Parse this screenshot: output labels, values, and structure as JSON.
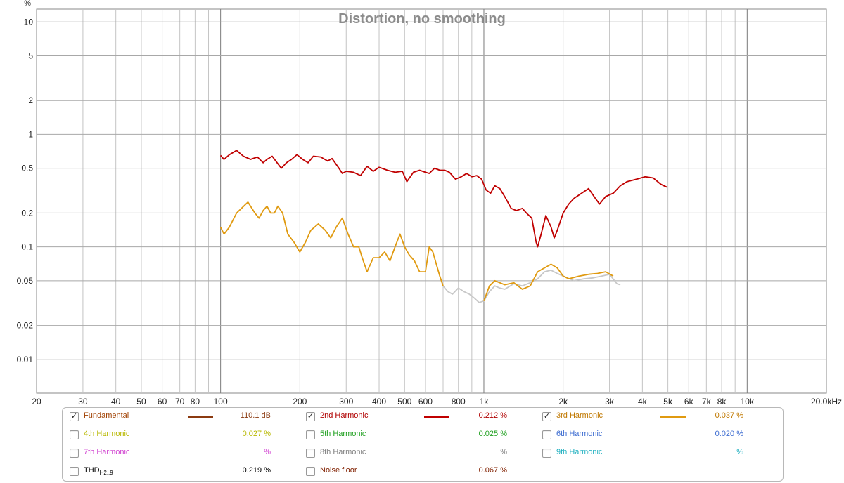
{
  "chart_data": {
    "type": "line",
    "title": "Distortion, no smoothing",
    "y_unit_label": "%",
    "x_scale": "log",
    "y_scale": "log",
    "xlim": [
      20,
      20000
    ],
    "ylim": [
      0.005,
      13
    ],
    "x_ticks": [
      {
        "v": 20,
        "t": "20"
      },
      {
        "v": 30,
        "t": "30"
      },
      {
        "v": 40,
        "t": "40"
      },
      {
        "v": 50,
        "t": "50"
      },
      {
        "v": 60,
        "t": "60"
      },
      {
        "v": 70,
        "t": "70"
      },
      {
        "v": 80,
        "t": "80"
      },
      {
        "v": 90,
        "t": ""
      },
      {
        "v": 100,
        "t": "100"
      },
      {
        "v": 200,
        "t": "200"
      },
      {
        "v": 300,
        "t": "300"
      },
      {
        "v": 400,
        "t": "400"
      },
      {
        "v": 500,
        "t": "500"
      },
      {
        "v": 600,
        "t": "600"
      },
      {
        "v": 700,
        "t": ""
      },
      {
        "v": 800,
        "t": "800"
      },
      {
        "v": 900,
        "t": ""
      },
      {
        "v": 1000,
        "t": "1k"
      },
      {
        "v": 2000,
        "t": "2k"
      },
      {
        "v": 3000,
        "t": "3k"
      },
      {
        "v": 4000,
        "t": "4k"
      },
      {
        "v": 5000,
        "t": "5k"
      },
      {
        "v": 6000,
        "t": "6k"
      },
      {
        "v": 7000,
        "t": "7k"
      },
      {
        "v": 8000,
        "t": "8k"
      },
      {
        "v": 9000,
        "t": ""
      },
      {
        "v": 10000,
        "t": "10k"
      },
      {
        "v": 20000,
        "t": "20.0kHz"
      }
    ],
    "y_ticks": [
      {
        "v": 0.01,
        "t": "0.01"
      },
      {
        "v": 0.02,
        "t": "0.02"
      },
      {
        "v": 0.05,
        "t": "0.05"
      },
      {
        "v": 0.1,
        "t": "0.1"
      },
      {
        "v": 0.2,
        "t": "0.2"
      },
      {
        "v": 0.5,
        "t": "0.5"
      },
      {
        "v": 1,
        "t": "1"
      },
      {
        "v": 2,
        "t": "2"
      },
      {
        "v": 5,
        "t": "5"
      },
      {
        "v": 10,
        "t": "10"
      }
    ],
    "grid": true,
    "series": [
      {
        "name": "2nd Harmonic",
        "color": "#c00000",
        "points": [
          [
            100,
            0.65
          ],
          [
            103,
            0.6
          ],
          [
            108,
            0.66
          ],
          [
            115,
            0.72
          ],
          [
            122,
            0.64
          ],
          [
            130,
            0.6
          ],
          [
            138,
            0.63
          ],
          [
            145,
            0.56
          ],
          [
            150,
            0.6
          ],
          [
            157,
            0.64
          ],
          [
            162,
            0.58
          ],
          [
            170,
            0.5
          ],
          [
            178,
            0.56
          ],
          [
            186,
            0.6
          ],
          [
            195,
            0.66
          ],
          [
            205,
            0.6
          ],
          [
            215,
            0.56
          ],
          [
            225,
            0.64
          ],
          [
            240,
            0.63
          ],
          [
            255,
            0.58
          ],
          [
            265,
            0.61
          ],
          [
            280,
            0.51
          ],
          [
            290,
            0.45
          ],
          [
            300,
            0.47
          ],
          [
            320,
            0.46
          ],
          [
            340,
            0.43
          ],
          [
            360,
            0.52
          ],
          [
            380,
            0.47
          ],
          [
            400,
            0.51
          ],
          [
            430,
            0.48
          ],
          [
            460,
            0.46
          ],
          [
            490,
            0.47
          ],
          [
            510,
            0.38
          ],
          [
            540,
            0.46
          ],
          [
            570,
            0.48
          ],
          [
            600,
            0.46
          ],
          [
            620,
            0.45
          ],
          [
            650,
            0.5
          ],
          [
            680,
            0.48
          ],
          [
            710,
            0.48
          ],
          [
            740,
            0.46
          ],
          [
            780,
            0.4
          ],
          [
            820,
            0.42
          ],
          [
            860,
            0.45
          ],
          [
            900,
            0.42
          ],
          [
            940,
            0.43
          ],
          [
            980,
            0.4
          ],
          [
            1020,
            0.32
          ],
          [
            1060,
            0.3
          ],
          [
            1100,
            0.35
          ],
          [
            1150,
            0.33
          ],
          [
            1200,
            0.28
          ],
          [
            1270,
            0.22
          ],
          [
            1330,
            0.21
          ],
          [
            1400,
            0.22
          ],
          [
            1450,
            0.2
          ],
          [
            1520,
            0.18
          ],
          [
            1580,
            0.11
          ],
          [
            1600,
            0.1
          ],
          [
            1650,
            0.13
          ],
          [
            1720,
            0.19
          ],
          [
            1800,
            0.15
          ],
          [
            1850,
            0.12
          ],
          [
            1900,
            0.14
          ],
          [
            2000,
            0.2
          ],
          [
            2100,
            0.24
          ],
          [
            2200,
            0.27
          ],
          [
            2350,
            0.3
          ],
          [
            2500,
            0.33
          ],
          [
            2650,
            0.27
          ],
          [
            2750,
            0.24
          ],
          [
            2900,
            0.28
          ],
          [
            3100,
            0.3
          ],
          [
            3300,
            0.35
          ],
          [
            3500,
            0.38
          ],
          [
            3800,
            0.4
          ],
          [
            4100,
            0.42
          ],
          [
            4400,
            0.41
          ],
          [
            4700,
            0.36
          ],
          [
            4950,
            0.34
          ]
        ]
      },
      {
        "name": "3rd Harmonic",
        "color": "#e09a10",
        "points": [
          [
            100,
            0.15
          ],
          [
            103,
            0.13
          ],
          [
            108,
            0.15
          ],
          [
            115,
            0.2
          ],
          [
            120,
            0.22
          ],
          [
            127,
            0.25
          ],
          [
            135,
            0.2
          ],
          [
            140,
            0.18
          ],
          [
            145,
            0.21
          ],
          [
            150,
            0.23
          ],
          [
            155,
            0.2
          ],
          [
            160,
            0.2
          ],
          [
            165,
            0.23
          ],
          [
            172,
            0.2
          ],
          [
            180,
            0.13
          ],
          [
            190,
            0.11
          ],
          [
            200,
            0.09
          ],
          [
            210,
            0.11
          ],
          [
            220,
            0.14
          ],
          [
            235,
            0.16
          ],
          [
            250,
            0.14
          ],
          [
            262,
            0.12
          ],
          [
            275,
            0.15
          ],
          [
            290,
            0.18
          ],
          [
            305,
            0.13
          ],
          [
            320,
            0.1
          ],
          [
            335,
            0.1
          ],
          [
            345,
            0.08
          ],
          [
            360,
            0.06
          ],
          [
            380,
            0.08
          ],
          [
            400,
            0.08
          ],
          [
            420,
            0.09
          ],
          [
            440,
            0.075
          ],
          [
            460,
            0.1
          ],
          [
            480,
            0.13
          ],
          [
            500,
            0.1
          ],
          [
            520,
            0.085
          ],
          [
            545,
            0.075
          ],
          [
            570,
            0.06
          ],
          [
            600,
            0.06
          ],
          [
            620,
            0.1
          ],
          [
            640,
            0.09
          ],
          [
            660,
            0.07
          ],
          [
            680,
            0.055
          ],
          [
            700,
            0.045
          ]
        ]
      },
      {
        "name": "Noise floor",
        "color": "#c8c8c8",
        "points": [
          [
            700,
            0.045
          ],
          [
            730,
            0.04
          ],
          [
            760,
            0.038
          ],
          [
            800,
            0.043
          ],
          [
            840,
            0.04
          ],
          [
            880,
            0.038
          ],
          [
            920,
            0.035
          ],
          [
            960,
            0.032
          ],
          [
            1000,
            0.033
          ],
          [
            1050,
            0.04
          ],
          [
            1100,
            0.045
          ],
          [
            1150,
            0.043
          ],
          [
            1200,
            0.042
          ],
          [
            1300,
            0.047
          ],
          [
            1400,
            0.045
          ],
          [
            1500,
            0.048
          ],
          [
            1600,
            0.052
          ],
          [
            1700,
            0.06
          ],
          [
            1800,
            0.062
          ],
          [
            1900,
            0.058
          ],
          [
            2000,
            0.055
          ],
          [
            2200,
            0.05
          ],
          [
            2400,
            0.052
          ],
          [
            2600,
            0.053
          ],
          [
            2800,
            0.055
          ],
          [
            3000,
            0.057
          ],
          [
            3200,
            0.047
          ],
          [
            3300,
            0.046
          ]
        ]
      },
      {
        "name": "3rd Harmonic (upper)",
        "color": "#e09a10",
        "points": [
          [
            1000,
            0.033
          ],
          [
            1050,
            0.045
          ],
          [
            1100,
            0.05
          ],
          [
            1200,
            0.046
          ],
          [
            1300,
            0.048
          ],
          [
            1400,
            0.042
          ],
          [
            1500,
            0.045
          ],
          [
            1600,
            0.06
          ],
          [
            1700,
            0.065
          ],
          [
            1800,
            0.07
          ],
          [
            1900,
            0.065
          ],
          [
            2000,
            0.055
          ],
          [
            2100,
            0.052
          ],
          [
            2300,
            0.055
          ],
          [
            2500,
            0.057
          ],
          [
            2700,
            0.058
          ],
          [
            2900,
            0.06
          ],
          [
            3100,
            0.055
          ]
        ]
      }
    ]
  },
  "legend": {
    "rows": [
      [
        {
          "label": "Fundamental",
          "checked": true,
          "color": "#a04000",
          "swatch": "#8b3a10",
          "value": "110.1 dB",
          "value_color": "#8b3a10"
        },
        {
          "label": "2nd Harmonic",
          "checked": true,
          "color": "#b00000",
          "swatch": "#c00000",
          "value": "0.212 %",
          "value_color": "#b00000"
        },
        {
          "label": "3rd Harmonic",
          "checked": true,
          "color": "#c07800",
          "swatch": "#e09a10",
          "value": "0.037 %",
          "value_color": "#c07800"
        }
      ],
      [
        {
          "label": "4th Harmonic",
          "checked": false,
          "color": "#b8b800",
          "swatch": "",
          "value": "0.027 %",
          "value_color": "#b8b800"
        },
        {
          "label": "5th Harmonic",
          "checked": false,
          "color": "#20a020",
          "swatch": "",
          "value": "0.025 %",
          "value_color": "#20a020"
        },
        {
          "label": "6th Harmonic",
          "checked": false,
          "color": "#3a6ad0",
          "swatch": "",
          "value": "0.020 %",
          "value_color": "#3a6ad0"
        }
      ],
      [
        {
          "label": "7th Harmonic",
          "checked": false,
          "color": "#d040d0",
          "swatch": "",
          "value": "%",
          "value_color": "#d040d0"
        },
        {
          "label": "8th Harmonic",
          "checked": false,
          "color": "#808080",
          "swatch": "",
          "value": "%",
          "value_color": "#808080"
        },
        {
          "label": "9th Harmonic",
          "checked": false,
          "color": "#20b0c0",
          "swatch": "",
          "value": "%",
          "value_color": "#20b0c0"
        }
      ],
      [
        {
          "label": "THD",
          "label_sub": "H2..9",
          "checked": false,
          "color": "#000000",
          "swatch": "",
          "value": "0.219 %",
          "value_color": "#000000"
        },
        {
          "label": "Noise floor",
          "checked": false,
          "color": "#802000",
          "swatch": "",
          "value": "0.067 %",
          "value_color": "#802000"
        }
      ]
    ]
  }
}
